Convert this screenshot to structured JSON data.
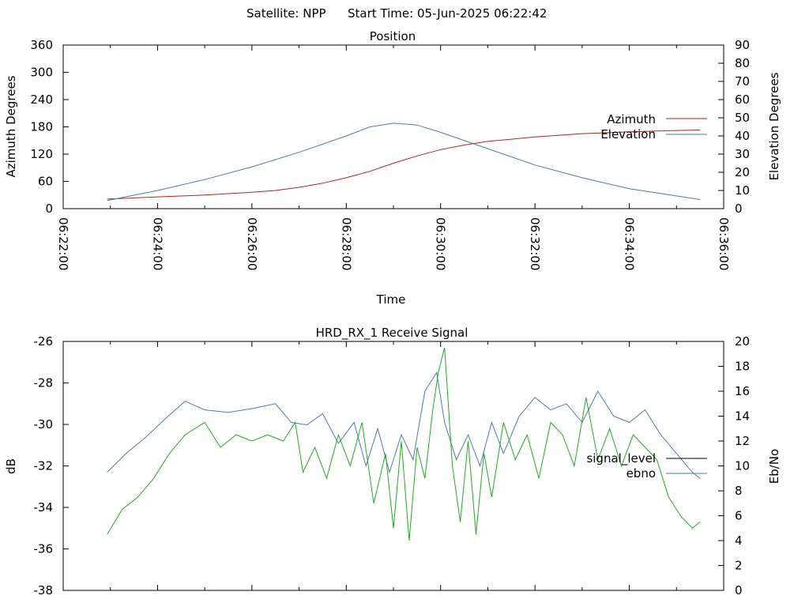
{
  "header": {
    "satellite": "Satellite: NPP",
    "start_time": "Start Time: 05-Jun-2025 06:22:42"
  },
  "chart_data": [
    {
      "type": "line",
      "title": "Position",
      "xlabel": "Time",
      "ylabel": "Azimuth Degrees",
      "y2label": "Elevation Degrees",
      "xlim": [
        "06:22:00",
        "06:36:00"
      ],
      "x_ticks": [
        "06:22:00",
        "06:24:00",
        "06:26:00",
        "06:28:00",
        "06:30:00",
        "06:32:00",
        "06:34:00",
        "06:36:00"
      ],
      "ylim": [
        0,
        360
      ],
      "y_ticks": [
        "0",
        "60",
        "120",
        "180",
        "240",
        "300",
        "360"
      ],
      "y2lim": [
        0,
        90
      ],
      "y2_ticks": [
        "0",
        "10",
        "20",
        "30",
        "40",
        "50",
        "60",
        "70",
        "80",
        "90"
      ],
      "legend_position": "right",
      "series": [
        {
          "name": "Azimuth",
          "axis": "y",
          "color": "#b22222",
          "x": [
            "06:22:56",
            "06:24:00",
            "06:25:00",
            "06:26:00",
            "06:26:30",
            "06:27:00",
            "06:27:30",
            "06:28:00",
            "06:28:30",
            "06:29:00",
            "06:29:30",
            "06:30:00",
            "06:30:30",
            "06:31:00",
            "06:32:00",
            "06:33:00",
            "06:34:00",
            "06:35:00",
            "06:35:30"
          ],
          "values": [
            21,
            26,
            30,
            36,
            40,
            47,
            56,
            68,
            82,
            100,
            116,
            130,
            140,
            148,
            158,
            165,
            169,
            172,
            173
          ]
        },
        {
          "name": "Elevation",
          "axis": "y2",
          "color": "#4a7ab5",
          "x": [
            "06:22:56",
            "06:24:00",
            "06:25:00",
            "06:26:00",
            "06:27:00",
            "06:28:00",
            "06:28:30",
            "06:29:00",
            "06:29:30",
            "06:30:00",
            "06:31:00",
            "06:32:00",
            "06:33:00",
            "06:34:00",
            "06:35:00",
            "06:35:30"
          ],
          "values": [
            4.5,
            10,
            16,
            23,
            31,
            40,
            45,
            47,
            46,
            42,
            33,
            24,
            17,
            11,
            7,
            5
          ]
        }
      ]
    },
    {
      "type": "line",
      "title": "HRD_RX_1 Receive Signal",
      "xlabel": "",
      "ylabel": "dB",
      "y2label": "Eb/No",
      "xlim": [
        "06:22:00",
        "06:36:00"
      ],
      "ylim": [
        -38,
        -26
      ],
      "y_ticks": [
        "-38",
        "-36",
        "-34",
        "-32",
        "-30",
        "-28",
        "-26"
      ],
      "y2lim": [
        0,
        20
      ],
      "y2_ticks": [
        "0",
        "2",
        "4",
        "6",
        "8",
        "10",
        "12",
        "14",
        "16",
        "18",
        "20"
      ],
      "legend_position": "right",
      "legend": [
        "signal_level",
        "ebno"
      ],
      "series": [
        {
          "name": "ebno",
          "axis": "y2",
          "color": "#4a7ab5",
          "x": [
            "06:22:56",
            "06:23:20",
            "06:23:45",
            "06:24:10",
            "06:24:35",
            "06:25:00",
            "06:25:30",
            "06:26:00",
            "06:26:30",
            "06:26:50",
            "06:27:10",
            "06:27:30",
            "06:27:50",
            "06:28:10",
            "06:28:25",
            "06:28:40",
            "06:28:55",
            "06:29:10",
            "06:29:25",
            "06:29:40",
            "06:29:55",
            "06:30:05",
            "06:30:20",
            "06:30:35",
            "06:30:50",
            "06:31:05",
            "06:31:20",
            "06:31:40",
            "06:32:00",
            "06:32:20",
            "06:32:40",
            "06:33:00",
            "06:33:20",
            "06:33:40",
            "06:34:00",
            "06:34:20",
            "06:34:40",
            "06:35:00",
            "06:35:20",
            "06:35:30"
          ],
          "values": [
            9.5,
            11.0,
            12.3,
            13.8,
            15.2,
            14.5,
            14.3,
            14.6,
            15.0,
            13.5,
            13.3,
            14.2,
            11.8,
            13.5,
            10.0,
            13.0,
            9.5,
            12.5,
            10.5,
            16.0,
            17.5,
            13.5,
            10.5,
            12.5,
            10.0,
            13.5,
            11.0,
            14.0,
            15.5,
            14.5,
            15.0,
            13.5,
            16.0,
            14.0,
            13.5,
            14.5,
            12.5,
            11.0,
            9.5,
            9.0
          ]
        },
        {
          "name": "",
          "axis": "y2",
          "color": "#22aa22",
          "x": [
            "06:22:56",
            "06:23:15",
            "06:23:35",
            "06:23:55",
            "06:24:15",
            "06:24:35",
            "06:25:00",
            "06:25:20",
            "06:25:40",
            "06:26:00",
            "06:26:20",
            "06:26:40",
            "06:26:55",
            "06:27:05",
            "06:27:20",
            "06:27:35",
            "06:27:50",
            "06:28:05",
            "06:28:20",
            "06:28:35",
            "06:28:50",
            "06:29:00",
            "06:29:10",
            "06:29:20",
            "06:29:30",
            "06:29:40",
            "06:29:50",
            "06:29:57",
            "06:30:05",
            "06:30:15",
            "06:30:25",
            "06:30:35",
            "06:30:45",
            "06:30:55",
            "06:31:05",
            "06:31:20",
            "06:31:35",
            "06:31:50",
            "06:32:05",
            "06:32:20",
            "06:32:35",
            "06:32:50",
            "06:33:05",
            "06:33:20",
            "06:33:35",
            "06:33:50",
            "06:34:05",
            "06:34:20",
            "06:34:35",
            "06:34:50",
            "06:35:05",
            "06:35:20",
            "06:35:30"
          ],
          "values": [
            4.5,
            6.5,
            7.5,
            9.0,
            11.0,
            12.5,
            13.5,
            11.5,
            12.5,
            12.0,
            12.5,
            12.0,
            13.5,
            9.5,
            11.5,
            9.0,
            12.5,
            10.0,
            13.5,
            7.0,
            11.0,
            5.0,
            12.0,
            4.0,
            11.5,
            9.0,
            14.5,
            17.5,
            19.5,
            10.0,
            5.5,
            12.0,
            4.5,
            11.0,
            7.5,
            13.5,
            10.5,
            12.5,
            9.0,
            13.5,
            12.5,
            10.0,
            15.5,
            10.5,
            13.0,
            10.0,
            12.5,
            11.5,
            10.5,
            7.5,
            6.0,
            5.0,
            5.5
          ]
        }
      ]
    }
  ]
}
